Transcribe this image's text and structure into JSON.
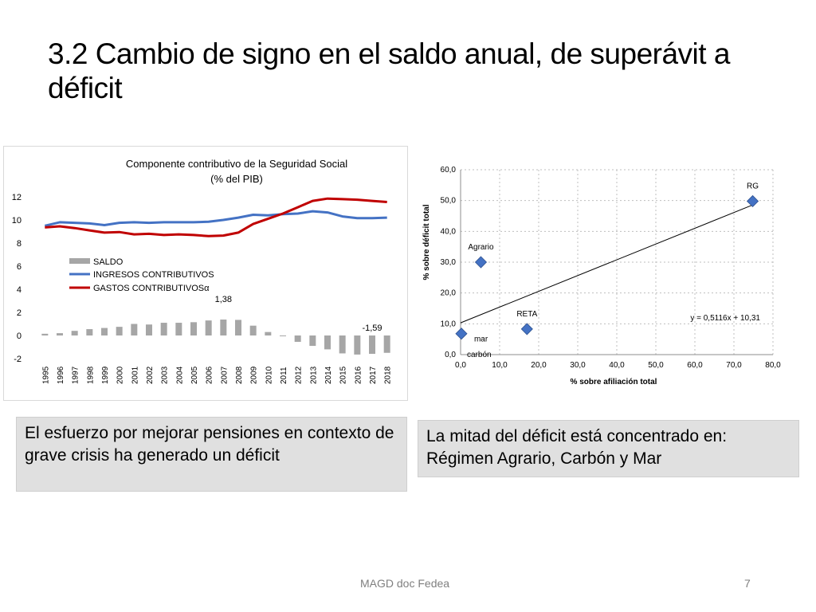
{
  "slide": {
    "title": "3.2 Cambio de signo en el saldo anual, de superávit a déficit",
    "callout_left": "El esfuerzo por mejorar pensiones en contexto de grave crisis ha generado un déficit",
    "callout_right": "La mitad del déficit está concentrado en: Régimen Agrario, Carbón y Mar",
    "footer": "MAGD doc Fedea",
    "page_number": "7"
  },
  "colors": {
    "saldo": "#a6a6a6",
    "ingresos": "#4472c4",
    "gastos": "#c00000",
    "scatter_marker": "#4472c4",
    "trend": "#000000"
  },
  "chart_data": [
    {
      "type": "bar+line",
      "title_line1": "Componente contributivo de la Seguridad Social",
      "title_line2": "(% del PIB)",
      "categories": [
        "1995",
        "1996",
        "1997",
        "1998",
        "1999",
        "2000",
        "2001",
        "2002",
        "2003",
        "2004",
        "2005",
        "2006",
        "2007",
        "2008",
        "2009",
        "2010",
        "2011",
        "2012",
        "2013",
        "2014",
        "2015",
        "2016",
        "2017",
        "2018"
      ],
      "ylim": [
        -2,
        12
      ],
      "yticks": [
        "12",
        "10",
        "8",
        "6",
        "4",
        "2",
        "0",
        "-2"
      ],
      "ytick_values": [
        12,
        10,
        8,
        6,
        4,
        2,
        0,
        -2
      ],
      "series": [
        {
          "name": "SALDO",
          "kind": "bar",
          "values": [
            0.15,
            0.2,
            0.4,
            0.55,
            0.65,
            0.75,
            1.0,
            0.95,
            1.1,
            1.1,
            1.15,
            1.3,
            1.38,
            1.35,
            0.85,
            0.3,
            -0.05,
            -0.55,
            -0.9,
            -1.2,
            -1.55,
            -1.65,
            -1.59,
            -1.5
          ]
        },
        {
          "name": "INGRESOS CONTRIBUTIVOS",
          "kind": "line",
          "values": [
            9.5,
            9.8,
            9.75,
            9.7,
            9.55,
            9.75,
            9.8,
            9.75,
            9.8,
            9.8,
            9.8,
            9.85,
            10.0,
            10.2,
            10.45,
            10.4,
            10.5,
            10.55,
            10.75,
            10.65,
            10.3,
            10.15,
            10.15,
            10.2
          ]
        },
        {
          "name": "GASTOS CONTRIBUTIVOSα",
          "kind": "line",
          "values": [
            9.35,
            9.45,
            9.3,
            9.1,
            8.9,
            8.95,
            8.75,
            8.8,
            8.7,
            8.75,
            8.7,
            8.6,
            8.65,
            8.9,
            9.65,
            10.1,
            10.55,
            11.1,
            11.65,
            11.85,
            11.8,
            11.75,
            11.65,
            11.55
          ]
        }
      ],
      "data_labels": [
        {
          "category": "2007",
          "series": "SALDO",
          "text": "1,38"
        },
        {
          "category": "2017",
          "series": "SALDO",
          "text": "-1,59"
        }
      ]
    },
    {
      "type": "scatter",
      "xlabel": "% sobre afiliación total",
      "ylabel": "% sobre déficit total",
      "xlim": [
        0,
        80
      ],
      "ylim": [
        0,
        60
      ],
      "xticks": [
        "0,0",
        "10,0",
        "20,0",
        "30,0",
        "40,0",
        "50,0",
        "60,0",
        "70,0",
        "80,0"
      ],
      "yticks": [
        "0,0",
        "10,0",
        "20,0",
        "30,0",
        "40,0",
        "50,0",
        "60,0"
      ],
      "tick_values_x": [
        0,
        10,
        20,
        30,
        40,
        50,
        60,
        70,
        80
      ],
      "tick_values_y": [
        0,
        10,
        20,
        30,
        40,
        50,
        60
      ],
      "points": [
        {
          "label": "RG",
          "x": 74.8,
          "y": 49.8
        },
        {
          "label": "Agrario",
          "x": 5.2,
          "y": 30.0
        },
        {
          "label": "RETA",
          "x": 17.0,
          "y": 8.3
        },
        {
          "label": "mar",
          "x": 0.2,
          "y": 6.8
        },
        {
          "label": "carbón",
          "x": 0.0,
          "y": 6.5
        }
      ],
      "trendline": {
        "slope": 0.5116,
        "intercept": 10.31,
        "label": "y = 0,5116x + 10,31"
      }
    }
  ]
}
